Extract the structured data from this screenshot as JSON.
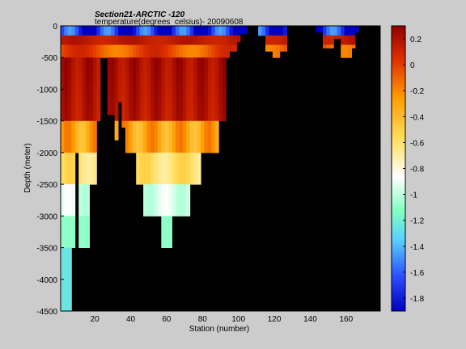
{
  "chart_data": {
    "type": "heatmap",
    "title": "Section21-ARCTIC  -120",
    "subtitle": "temperature(degrees_celsius)- 20090608",
    "xlabel": "Station (number)",
    "ylabel": "Depth (meter)",
    "xlim": [
      1,
      179
    ],
    "ylim": [
      -4500,
      0
    ],
    "xticks": [
      20,
      40,
      60,
      80,
      100,
      120,
      140,
      160
    ],
    "yticks": [
      0,
      -500,
      -1000,
      -1500,
      -2000,
      -2500,
      -3000,
      -3500,
      -4000,
      -4500
    ],
    "colorbar": {
      "range": [
        -1.9,
        0.3
      ],
      "colormap": "jet-like",
      "ticks": [
        0.2,
        0,
        -0.2,
        -0.4,
        -0.6,
        -0.8,
        -1,
        -1.2,
        -1.4,
        -1.6,
        -1.8
      ]
    },
    "background_color": "#000000",
    "layers": [
      {
        "depth_range": [
          0,
          -150
        ],
        "description_value": -1.7
      },
      {
        "depth_range": [
          -150,
          -300
        ],
        "description_value": 0.2
      },
      {
        "depth_range": [
          -300,
          -500
        ],
        "description_value": 0.0
      },
      {
        "depth_range": [
          -500,
          -1500
        ],
        "description_value": 0.25
      },
      {
        "depth_range": [
          -1500,
          -2000
        ],
        "description_value": -0.3
      },
      {
        "depth_range": [
          -2000,
          -2500
        ],
        "description_value": -0.55
      },
      {
        "depth_range": [
          -2500,
          -3000
        ],
        "description_value": -0.95
      },
      {
        "depth_range": [
          -3000,
          -3500
        ],
        "description_value": -1.1
      },
      {
        "depth_range": [
          -3500,
          -4500
        ],
        "description_value": -1.2
      }
    ]
  }
}
